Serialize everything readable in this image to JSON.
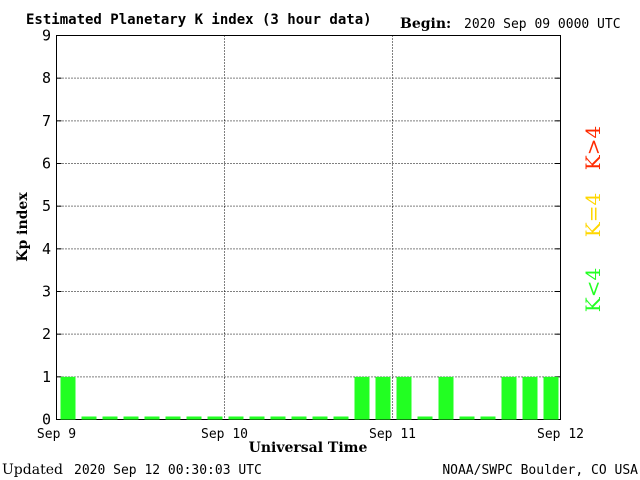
{
  "header": {
    "title": "Estimated Planetary K index (3 hour data)",
    "begin_label": "Begin:",
    "begin_value": "2020 Sep 09 0000 UTC"
  },
  "footer": {
    "updated_label": "Updated",
    "updated_value": "2020 Sep 12 00:30:03 UTC",
    "source": "NOAA/SWPC Boulder, CO USA"
  },
  "legend": {
    "high": {
      "label": "K>4",
      "color": "#ff2a00"
    },
    "mid": {
      "label": "K=4",
      "color": "#ffd700"
    },
    "low": {
      "label": "K<4",
      "color": "#22ff22"
    }
  },
  "chart_data": {
    "type": "bar",
    "title": "Estimated Planetary K index (3 hour data)",
    "xlabel": "Universal Time",
    "ylabel": "Kp index",
    "ylim": [
      0,
      9
    ],
    "yticks": [
      0,
      1,
      2,
      3,
      4,
      5,
      6,
      7,
      8,
      9
    ],
    "x_tick_labels": [
      "Sep 9",
      "Sep 10",
      "Sep 11",
      "Sep 12"
    ],
    "grid": true,
    "bar_color": "#22ff22",
    "legend_position": "right",
    "values": [
      1,
      0,
      0,
      0,
      0,
      0,
      0,
      0,
      0,
      0,
      0,
      0,
      0,
      0,
      1,
      1,
      1,
      0,
      1,
      0,
      0,
      1,
      1,
      1
    ]
  }
}
